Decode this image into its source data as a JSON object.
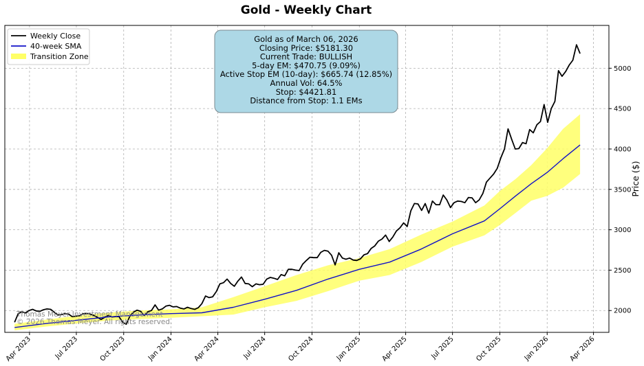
{
  "chart_data": {
    "type": "line",
    "title": "Gold - Weekly Chart",
    "xlabel": "",
    "ylabel": "Price ($)",
    "ylim": [
      1730,
      5530
    ],
    "x_range": [
      "2023-02-12",
      "2026-05-01"
    ],
    "grid": true,
    "legend_position": "top-left",
    "x_ticks": [
      {
        "date": "2023-04-01",
        "label": "Apr 2023"
      },
      {
        "date": "2023-07-01",
        "label": "Jul 2023"
      },
      {
        "date": "2023-10-01",
        "label": "Oct 2023"
      },
      {
        "date": "2024-01-01",
        "label": "Jan 2024"
      },
      {
        "date": "2024-04-01",
        "label": "Apr 2024"
      },
      {
        "date": "2024-07-01",
        "label": "Jul 2024"
      },
      {
        "date": "2024-10-01",
        "label": "Oct 2024"
      },
      {
        "date": "2025-01-01",
        "label": "Jan 2025"
      },
      {
        "date": "2025-04-01",
        "label": "Apr 2025"
      },
      {
        "date": "2025-07-01",
        "label": "Jul 2025"
      },
      {
        "date": "2025-10-01",
        "label": "Oct 2025"
      },
      {
        "date": "2026-01-01",
        "label": "Jan 2026"
      },
      {
        "date": "2026-04-01",
        "label": "Apr 2026"
      }
    ],
    "y_ticks": [
      {
        "value": 2000,
        "label": "2000"
      },
      {
        "value": 2500,
        "label": "2500"
      },
      {
        "value": 3000,
        "label": "3000"
      },
      {
        "value": 3500,
        "label": "3500"
      },
      {
        "value": 4000,
        "label": "4000"
      },
      {
        "value": 4500,
        "label": "4500"
      },
      {
        "value": 5000,
        "label": "5000"
      }
    ],
    "series": [
      {
        "name": "Weekly Close",
        "color": "#000000",
        "points": [
          [
            "2023-03-03",
            1855
          ],
          [
            "2023-03-10",
            1960
          ],
          [
            "2023-03-17",
            1985
          ],
          [
            "2023-03-24",
            1970
          ],
          [
            "2023-03-31",
            2000
          ],
          [
            "2023-04-07",
            2015
          ],
          [
            "2023-04-14",
            1995
          ],
          [
            "2023-04-21",
            1990
          ],
          [
            "2023-04-28",
            2010
          ],
          [
            "2023-05-05",
            2020
          ],
          [
            "2023-05-12",
            2015
          ],
          [
            "2023-05-19",
            1980
          ],
          [
            "2023-05-26",
            1945
          ],
          [
            "2023-06-02",
            1950
          ],
          [
            "2023-06-09",
            1960
          ],
          [
            "2023-06-16",
            1955
          ],
          [
            "2023-06-23",
            1925
          ],
          [
            "2023-06-30",
            1930
          ],
          [
            "2023-07-07",
            1935
          ],
          [
            "2023-07-14",
            1960
          ],
          [
            "2023-07-21",
            1965
          ],
          [
            "2023-07-28",
            1955
          ],
          [
            "2023-08-04",
            1940
          ],
          [
            "2023-08-11",
            1915
          ],
          [
            "2023-08-18",
            1890
          ],
          [
            "2023-08-25",
            1915
          ],
          [
            "2023-09-01",
            1940
          ],
          [
            "2023-09-08",
            1920
          ],
          [
            "2023-09-15",
            1925
          ],
          [
            "2023-09-22",
            1925
          ],
          [
            "2023-09-29",
            1855
          ],
          [
            "2023-10-06",
            1830
          ],
          [
            "2023-10-13",
            1930
          ],
          [
            "2023-10-20",
            1980
          ],
          [
            "2023-10-27",
            2005
          ],
          [
            "2023-11-03",
            1990
          ],
          [
            "2023-11-10",
            1940
          ],
          [
            "2023-11-17",
            1985
          ],
          [
            "2023-11-24",
            2000
          ],
          [
            "2023-12-01",
            2070
          ],
          [
            "2023-12-08",
            2005
          ],
          [
            "2023-12-15",
            2020
          ],
          [
            "2023-12-22",
            2055
          ],
          [
            "2023-12-29",
            2065
          ],
          [
            "2024-01-05",
            2045
          ],
          [
            "2024-01-12",
            2050
          ],
          [
            "2024-01-19",
            2030
          ],
          [
            "2024-01-26",
            2020
          ],
          [
            "2024-02-02",
            2040
          ],
          [
            "2024-02-09",
            2025
          ],
          [
            "2024-02-16",
            2015
          ],
          [
            "2024-02-23",
            2035
          ],
          [
            "2024-03-01",
            2085
          ],
          [
            "2024-03-08",
            2180
          ],
          [
            "2024-03-15",
            2160
          ],
          [
            "2024-03-22",
            2170
          ],
          [
            "2024-03-29",
            2235
          ],
          [
            "2024-04-05",
            2330
          ],
          [
            "2024-04-12",
            2345
          ],
          [
            "2024-04-19",
            2390
          ],
          [
            "2024-04-26",
            2335
          ],
          [
            "2024-05-03",
            2300
          ],
          [
            "2024-05-10",
            2365
          ],
          [
            "2024-05-17",
            2415
          ],
          [
            "2024-05-24",
            2335
          ],
          [
            "2024-05-31",
            2330
          ],
          [
            "2024-06-07",
            2295
          ],
          [
            "2024-06-14",
            2330
          ],
          [
            "2024-06-21",
            2320
          ],
          [
            "2024-06-28",
            2325
          ],
          [
            "2024-07-05",
            2390
          ],
          [
            "2024-07-12",
            2410
          ],
          [
            "2024-07-19",
            2400
          ],
          [
            "2024-07-26",
            2385
          ],
          [
            "2024-08-02",
            2445
          ],
          [
            "2024-08-09",
            2430
          ],
          [
            "2024-08-16",
            2510
          ],
          [
            "2024-08-23",
            2510
          ],
          [
            "2024-08-30",
            2500
          ],
          [
            "2024-09-06",
            2495
          ],
          [
            "2024-09-13",
            2575
          ],
          [
            "2024-09-20",
            2620
          ],
          [
            "2024-09-27",
            2660
          ],
          [
            "2024-10-04",
            2655
          ],
          [
            "2024-10-11",
            2655
          ],
          [
            "2024-10-18",
            2720
          ],
          [
            "2024-10-25",
            2745
          ],
          [
            "2024-11-01",
            2735
          ],
          [
            "2024-11-08",
            2685
          ],
          [
            "2024-11-15",
            2565
          ],
          [
            "2024-11-22",
            2715
          ],
          [
            "2024-11-29",
            2650
          ],
          [
            "2024-12-06",
            2635
          ],
          [
            "2024-12-13",
            2650
          ],
          [
            "2024-12-20",
            2625
          ],
          [
            "2024-12-27",
            2620
          ],
          [
            "2025-01-03",
            2640
          ],
          [
            "2025-01-10",
            2690
          ],
          [
            "2025-01-17",
            2705
          ],
          [
            "2025-01-24",
            2770
          ],
          [
            "2025-01-31",
            2800
          ],
          [
            "2025-02-07",
            2860
          ],
          [
            "2025-02-14",
            2885
          ],
          [
            "2025-02-21",
            2935
          ],
          [
            "2025-02-28",
            2855
          ],
          [
            "2025-03-07",
            2910
          ],
          [
            "2025-03-14",
            2985
          ],
          [
            "2025-03-21",
            3025
          ],
          [
            "2025-03-28",
            3085
          ],
          [
            "2025-04-04",
            3040
          ],
          [
            "2025-04-11",
            3235
          ],
          [
            "2025-04-18",
            3325
          ],
          [
            "2025-04-25",
            3320
          ],
          [
            "2025-05-02",
            3240
          ],
          [
            "2025-05-09",
            3325
          ],
          [
            "2025-05-16",
            3205
          ],
          [
            "2025-05-23",
            3355
          ],
          [
            "2025-05-30",
            3310
          ],
          [
            "2025-06-06",
            3310
          ],
          [
            "2025-06-13",
            3430
          ],
          [
            "2025-06-20",
            3370
          ],
          [
            "2025-06-27",
            3275
          ],
          [
            "2025-07-04",
            3335
          ],
          [
            "2025-07-11",
            3355
          ],
          [
            "2025-07-18",
            3350
          ],
          [
            "2025-07-25",
            3335
          ],
          [
            "2025-08-01",
            3400
          ],
          [
            "2025-08-08",
            3395
          ],
          [
            "2025-08-15",
            3335
          ],
          [
            "2025-08-22",
            3370
          ],
          [
            "2025-08-29",
            3450
          ],
          [
            "2025-09-05",
            3590
          ],
          [
            "2025-09-12",
            3640
          ],
          [
            "2025-09-19",
            3690
          ],
          [
            "2025-09-26",
            3760
          ],
          [
            "2025-10-03",
            3890
          ],
          [
            "2025-10-10",
            4000
          ],
          [
            "2025-10-17",
            4250
          ],
          [
            "2025-10-24",
            4120
          ],
          [
            "2025-10-31",
            4000
          ],
          [
            "2025-11-07",
            4005
          ],
          [
            "2025-11-14",
            4080
          ],
          [
            "2025-11-21",
            4065
          ],
          [
            "2025-11-28",
            4240
          ],
          [
            "2025-12-05",
            4200
          ],
          [
            "2025-12-12",
            4300
          ],
          [
            "2025-12-19",
            4340
          ],
          [
            "2025-12-26",
            4550
          ],
          [
            "2026-01-02",
            4330
          ],
          [
            "2026-01-09",
            4500
          ],
          [
            "2026-01-16",
            4590
          ],
          [
            "2026-01-23",
            4970
          ],
          [
            "2026-01-30",
            4900
          ],
          [
            "2026-02-06",
            4960
          ],
          [
            "2026-02-13",
            5040
          ],
          [
            "2026-02-20",
            5100
          ],
          [
            "2026-02-27",
            5290
          ],
          [
            "2026-03-06",
            5181.3
          ]
        ]
      },
      {
        "name": "40-week SMA",
        "color": "#1010c8",
        "points": [
          [
            "2023-03-03",
            1790
          ],
          [
            "2023-05-01",
            1838
          ],
          [
            "2023-07-01",
            1880
          ],
          [
            "2023-09-01",
            1920
          ],
          [
            "2023-11-01",
            1945
          ],
          [
            "2024-01-01",
            1962
          ],
          [
            "2024-03-01",
            1972
          ],
          [
            "2024-05-01",
            2040
          ],
          [
            "2024-07-01",
            2140
          ],
          [
            "2024-09-01",
            2250
          ],
          [
            "2024-11-01",
            2390
          ],
          [
            "2025-01-01",
            2510
          ],
          [
            "2025-03-01",
            2600
          ],
          [
            "2025-05-01",
            2760
          ],
          [
            "2025-07-01",
            2950
          ],
          [
            "2025-09-01",
            3110
          ],
          [
            "2025-10-01",
            3260
          ],
          [
            "2025-11-01",
            3420
          ],
          [
            "2025-12-01",
            3570
          ],
          [
            "2026-01-01",
            3710
          ],
          [
            "2026-02-01",
            3880
          ],
          [
            "2026-03-06",
            4050
          ]
        ]
      }
    ],
    "band": {
      "name": "Transition Zone",
      "color": "#ffff66",
      "upper": [
        [
          "2023-03-03",
          1835
        ],
        [
          "2023-05-01",
          1885
        ],
        [
          "2023-07-01",
          1935
        ],
        [
          "2023-09-01",
          1975
        ],
        [
          "2023-11-01",
          2000
        ],
        [
          "2024-01-01",
          2015
        ],
        [
          "2024-03-01",
          2040
        ],
        [
          "2024-05-01",
          2165
        ],
        [
          "2024-07-01",
          2300
        ],
        [
          "2024-09-01",
          2440
        ],
        [
          "2024-11-01",
          2560
        ],
        [
          "2025-01-01",
          2650
        ],
        [
          "2025-03-01",
          2760
        ],
        [
          "2025-05-01",
          2940
        ],
        [
          "2025-07-01",
          3100
        ],
        [
          "2025-09-01",
          3300
        ],
        [
          "2025-10-01",
          3480
        ],
        [
          "2025-11-01",
          3630
        ],
        [
          "2025-12-01",
          3800
        ],
        [
          "2026-01-01",
          4010
        ],
        [
          "2026-02-01",
          4250
        ],
        [
          "2026-03-06",
          4430
        ]
      ],
      "lower": [
        [
          "2023-03-03",
          1755
        ],
        [
          "2023-05-01",
          1800
        ],
        [
          "2023-07-01",
          1840
        ],
        [
          "2023-09-01",
          1875
        ],
        [
          "2023-11-01",
          1895
        ],
        [
          "2024-01-01",
          1910
        ],
        [
          "2024-03-01",
          1930
        ],
        [
          "2024-05-01",
          1950
        ],
        [
          "2024-07-01",
          2040
        ],
        [
          "2024-09-01",
          2120
        ],
        [
          "2024-11-01",
          2240
        ],
        [
          "2025-01-01",
          2370
        ],
        [
          "2025-03-01",
          2440
        ],
        [
          "2025-05-01",
          2600
        ],
        [
          "2025-07-01",
          2790
        ],
        [
          "2025-09-01",
          2930
        ],
        [
          "2025-10-01",
          3060
        ],
        [
          "2025-11-01",
          3210
        ],
        [
          "2025-12-01",
          3360
        ],
        [
          "2026-01-01",
          3420
        ],
        [
          "2026-02-01",
          3520
        ],
        [
          "2026-03-06",
          3690
        ]
      ]
    },
    "legend": [
      {
        "label": "Weekly Close",
        "kind": "line",
        "color": "#000000"
      },
      {
        "label": "40-week SMA",
        "kind": "line",
        "color": "#1010c8"
      },
      {
        "label": "Transition Zone",
        "kind": "patch",
        "color": "#ffff66"
      }
    ],
    "info_box": {
      "background": "#add8e6",
      "lines": [
        "Gold as of March 06, 2026",
        "Closing Price: $5181.30",
        "Current Trade: BULLISH",
        "5-day EM: $470.75 (9.09%)",
        "Active Stop EM (10-day): $665.74 (12.85%)",
        "Annual Vol: 64.5%",
        "Stop: $4421.81",
        "Distance from Stop: 1.1 EMs"
      ]
    },
    "watermark": [
      "Thomas Meyer Investment Management",
      "© 2026 Thomas Meyer. All rights reserved."
    ]
  }
}
